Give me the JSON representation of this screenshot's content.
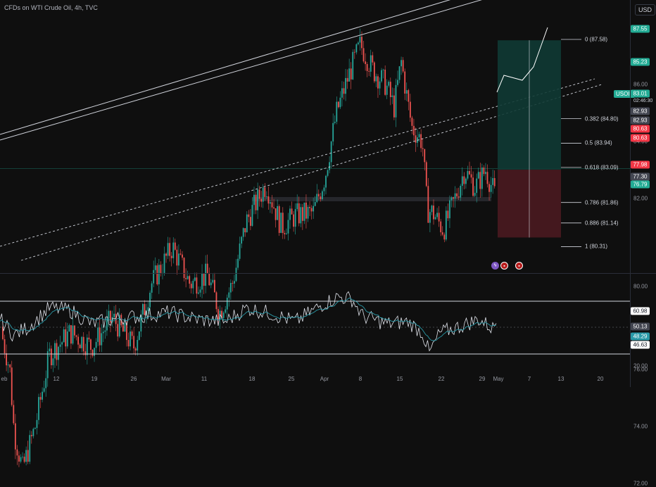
{
  "header": {
    "symbol_title": "CFDs on WTI Crude Oil, 4h, TVC",
    "currency": "USD"
  },
  "price_scale": {
    "ticks": [
      "88.00",
      "86.00",
      "84.00",
      "82.00",
      "78.00",
      "76.00",
      "74.00",
      "72.00"
    ],
    "tags": [
      {
        "text": "87.55",
        "color": "#22ab94"
      },
      {
        "text": "85.23",
        "color": "#22ab94"
      },
      {
        "text": "83.01",
        "color": "#22ab94"
      },
      {
        "text": "82.93",
        "color": "#434651"
      },
      {
        "text": "82.93",
        "color": "#434651"
      },
      {
        "text": "80.63",
        "color": "#f23645"
      },
      {
        "text": "80.63",
        "color": "#f23645"
      },
      {
        "text": "77.98",
        "color": "#f23645"
      },
      {
        "text": "77.30",
        "color": "#434651"
      },
      {
        "text": "76.79",
        "color": "#22ab94"
      }
    ],
    "countdown": "02:46:30",
    "symbol_tag": "USOIL"
  },
  "fib_levels": [
    {
      "label": "0 (87.58)",
      "price": 87.58
    },
    {
      "label": "0.382 (84.80)",
      "price": 84.8
    },
    {
      "label": "0.5 (83.94)",
      "price": 83.94
    },
    {
      "label": "0.618 (83.09)",
      "price": 83.09
    },
    {
      "label": "0.786 (81.86)",
      "price": 81.86
    },
    {
      "label": "0.886 (81.14)",
      "price": 81.14
    },
    {
      "label": "1 (80.31)",
      "price": 80.31
    }
  ],
  "rsi": {
    "ticks": [
      "80.00",
      "20.00"
    ],
    "tags": [
      {
        "text": "60.98",
        "color": "#ffffff",
        "text_color": "#131722"
      },
      {
        "text": "50.13",
        "color": "#434651",
        "text_color": "#ffffff"
      },
      {
        "text": "48.29",
        "color": "#2a9aa8",
        "text_color": "#ffffff"
      },
      {
        "text": "46.63",
        "color": "#ffffff",
        "text_color": "#131722"
      }
    ]
  },
  "time_axis": {
    "labels": [
      "eb",
      "12",
      "19",
      "26",
      "Mar",
      "11",
      "18",
      "25",
      "Apr",
      "8",
      "15",
      "22",
      "29",
      "May",
      "7",
      "13",
      "20"
    ]
  },
  "colors": {
    "bull": "#26a69a",
    "bear": "#ef5350",
    "background": "#0f0f0f"
  }
}
